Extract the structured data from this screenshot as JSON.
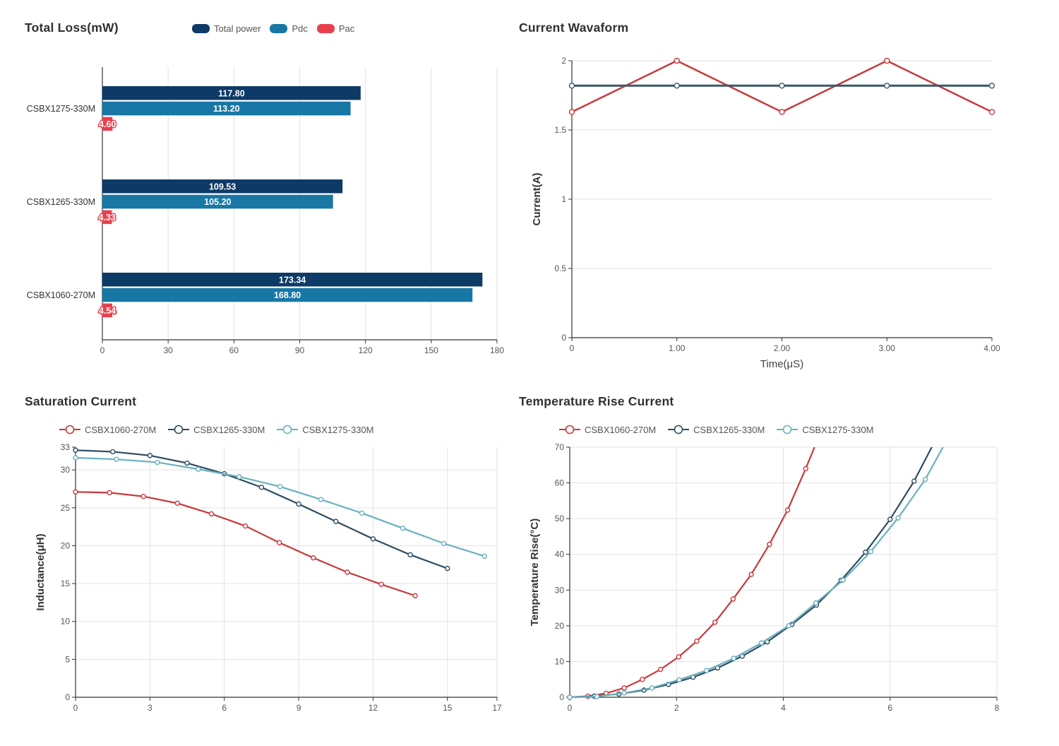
{
  "colors": {
    "background": "#ffffff",
    "title": "#303030",
    "axis": "#333333",
    "grid": "#e2e2e2",
    "tick_label": "#555555",
    "category_label": "#333333",
    "legend_text": "#555555",
    "bar_value_label": "#ffffff",
    "bar_navy": "#0d3a66",
    "bar_blue": "#1877a5",
    "bar_red": "#e8414d",
    "line_red": "#c8393c",
    "line_slate": "#3a586b",
    "line_navy": "#2d4b61",
    "line_teal": "#69b1bf"
  },
  "chart_data": [
    {
      "id": "total-loss",
      "type": "bar",
      "orientation": "horizontal",
      "title": "Total Loss(mW)",
      "categories": [
        "CSBX1275-330M",
        "CSBX1265-330M",
        "CSBX1060-270M"
      ],
      "series": [
        {
          "name": "Total power",
          "color": "#0d3a66",
          "values": [
            117.8,
            109.53,
            173.34
          ]
        },
        {
          "name": "Pdc",
          "color": "#1877a5",
          "values": [
            113.2,
            105.2,
            168.8
          ]
        },
        {
          "name": "Pac",
          "color": "#e8414d",
          "values": [
            4.6,
            4.33,
            4.54
          ]
        }
      ],
      "xlim": [
        0,
        180
      ],
      "xticks": [
        0,
        30,
        60,
        90,
        120,
        150,
        180
      ],
      "legend_position": "top",
      "value_labels": true
    },
    {
      "id": "current-waveform",
      "type": "line",
      "title": "Current Wavaform",
      "xlabel": "Time(μS)",
      "ylabel": "Current(A)",
      "xlim": [
        0,
        4
      ],
      "ylim": [
        0,
        2
      ],
      "xticks": [
        0,
        1,
        2,
        3,
        4
      ],
      "xtick_labels": [
        "0",
        "1.00",
        "2.00",
        "3.00",
        "4.00"
      ],
      "yticks": [
        0,
        0.5,
        1,
        1.5,
        2
      ],
      "ytick_labels": [
        "0",
        "0.5",
        "1",
        "1.5",
        "2"
      ],
      "vertical_grid": false,
      "show_legend": false,
      "series": [
        {
          "name": "",
          "color": "#c8393c",
          "line_width": 2.5,
          "points": [
            [
              0,
              1.63
            ],
            [
              1,
              2.0
            ],
            [
              2,
              1.63
            ],
            [
              3,
              2.0
            ],
            [
              4,
              1.63
            ]
          ]
        },
        {
          "name": "",
          "color": "#3a586b",
          "line_width": 3,
          "points": [
            [
              0,
              1.82
            ],
            [
              1,
              1.82
            ],
            [
              2,
              1.82
            ],
            [
              3,
              1.82
            ],
            [
              4,
              1.82
            ]
          ]
        }
      ]
    },
    {
      "id": "saturation-current",
      "type": "line",
      "title": "Saturation Current",
      "xlabel": "",
      "ylabel": "Inductance(μH)",
      "xlim": [
        0,
        17
      ],
      "ylim": [
        0,
        33
      ],
      "xticks": [
        0,
        3,
        6,
        9,
        12,
        15,
        17
      ],
      "yticks": [
        0,
        5,
        10,
        15,
        20,
        25,
        30,
        33
      ],
      "grid_skip_ymax": true,
      "vertical_grid": true,
      "show_legend": true,
      "series": [
        {
          "name": "CSBX1060-270M",
          "color": "#c8393c",
          "line_width": 2.2,
          "points": [
            [
              0,
              27.1
            ],
            [
              1.37,
              27.0
            ],
            [
              2.74,
              26.5
            ],
            [
              4.11,
              25.6
            ],
            [
              5.48,
              24.2
            ],
            [
              6.85,
              22.6
            ],
            [
              8.22,
              20.4
            ],
            [
              9.59,
              18.4
            ],
            [
              10.96,
              16.5
            ],
            [
              12.33,
              14.9
            ],
            [
              13.7,
              13.4
            ]
          ]
        },
        {
          "name": "CSBX1265-330M",
          "color": "#2d4b61",
          "line_width": 2.2,
          "points": [
            [
              0,
              32.6
            ],
            [
              1.5,
              32.4
            ],
            [
              3,
              31.9
            ],
            [
              4.5,
              30.9
            ],
            [
              6,
              29.5
            ],
            [
              7.5,
              27.7
            ],
            [
              9,
              25.5
            ],
            [
              10.5,
              23.2
            ],
            [
              12,
              20.9
            ],
            [
              13.5,
              18.8
            ],
            [
              15,
              17.0
            ]
          ]
        },
        {
          "name": "CSBX1275-330M",
          "color": "#69b1bf",
          "line_width": 2.2,
          "points": [
            [
              0,
              31.6
            ],
            [
              1.65,
              31.4
            ],
            [
              3.3,
              31.0
            ],
            [
              4.95,
              30.1
            ],
            [
              6.6,
              29.1
            ],
            [
              8.25,
              27.8
            ],
            [
              9.9,
              26.1
            ],
            [
              11.55,
              24.3
            ],
            [
              13.2,
              22.3
            ],
            [
              14.85,
              20.3
            ],
            [
              16.5,
              18.6
            ]
          ]
        }
      ]
    },
    {
      "id": "temperature-rise",
      "type": "line",
      "title": "Temperature Rise Current",
      "xlabel": "",
      "ylabel": "Temperature Rise(°C)",
      "xlim": [
        0,
        8
      ],
      "ylim": [
        0,
        70
      ],
      "xticks": [
        0,
        2,
        4,
        6,
        8
      ],
      "yticks": [
        0,
        10,
        20,
        30,
        40,
        50,
        60,
        70
      ],
      "vertical_grid": true,
      "show_legend": true,
      "series": [
        {
          "name": "CSBX1060-270M",
          "color": "#c8393c",
          "line_width": 2.2,
          "points": [
            [
              0,
              0
            ],
            [
              0.34,
              0.3
            ],
            [
              0.68,
              1.1
            ],
            [
              1.02,
              2.6
            ],
            [
              1.36,
              5.0
            ],
            [
              1.7,
              7.8
            ],
            [
              2.04,
              11.3
            ],
            [
              2.38,
              15.7
            ],
            [
              2.72,
              21.0
            ],
            [
              3.06,
              27.5
            ],
            [
              3.4,
              34.4
            ],
            [
              3.74,
              42.8
            ],
            [
              4.08,
              52.4
            ],
            [
              4.42,
              64.0
            ],
            [
              4.72,
              75.0
            ]
          ]
        },
        {
          "name": "CSBX1265-330M",
          "color": "#2d4b61",
          "line_width": 2.2,
          "points": [
            [
              0,
              0
            ],
            [
              0.46,
              0.3
            ],
            [
              0.92,
              0.9
            ],
            [
              1.39,
              2.0
            ],
            [
              1.85,
              3.6
            ],
            [
              2.31,
              5.6
            ],
            [
              2.77,
              8.2
            ],
            [
              3.23,
              11.5
            ],
            [
              3.7,
              15.5
            ],
            [
              4.16,
              20.4
            ],
            [
              4.62,
              25.8
            ],
            [
              5.08,
              32.7
            ],
            [
              5.54,
              40.6
            ],
            [
              6.0,
              49.8
            ],
            [
              6.45,
              60.5
            ],
            [
              6.85,
              72.0
            ]
          ]
        },
        {
          "name": "CSBX1275-330M",
          "color": "#69b1bf",
          "line_width": 2.2,
          "points": [
            [
              0,
              0
            ],
            [
              0.51,
              0.2
            ],
            [
              1.02,
              1.2
            ],
            [
              1.54,
              2.6
            ],
            [
              2.05,
              4.9
            ],
            [
              2.56,
              7.5
            ],
            [
              3.07,
              10.9
            ],
            [
              3.59,
              15.2
            ],
            [
              4.1,
              20.0
            ],
            [
              4.61,
              26.4
            ],
            [
              5.12,
              32.8
            ],
            [
              5.64,
              40.8
            ],
            [
              6.15,
              50.2
            ],
            [
              6.66,
              61.0
            ],
            [
              7.1,
              73.0
            ]
          ]
        }
      ]
    }
  ]
}
